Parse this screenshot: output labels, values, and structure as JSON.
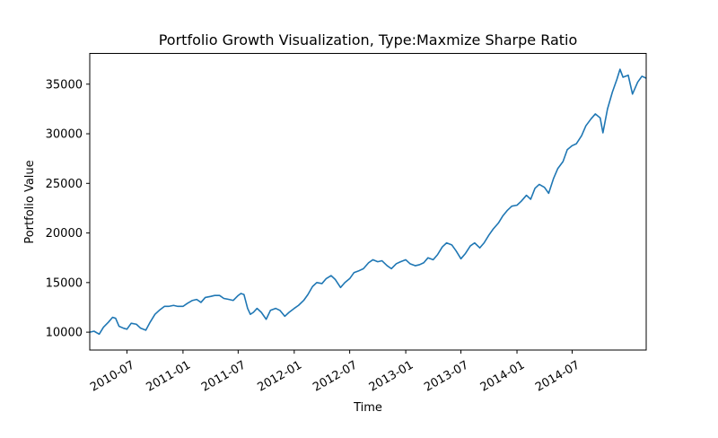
{
  "chart_data": {
    "type": "line",
    "title": "Portfolio Growth Visualization, Type:Maxmize Sharpe Ratio",
    "xlabel": "Time",
    "ylabel": "Portfolio Value",
    "grid": false,
    "legend": "none",
    "xlim": [
      "2010-03-01",
      "2015-03-01"
    ],
    "ylim": [
      8200,
      38100
    ],
    "x_ticks": [
      "2010-07",
      "2011-01",
      "2011-07",
      "2012-01",
      "2012-07",
      "2013-01",
      "2013-07",
      "2014-01",
      "2014-07"
    ],
    "y_ticks": [
      10000,
      15000,
      20000,
      25000,
      30000,
      35000
    ],
    "series": [
      {
        "color": "#1f77b4",
        "points": [
          [
            "2010-03-01",
            10000
          ],
          [
            "2010-03-15",
            10100
          ],
          [
            "2010-04-01",
            9800
          ],
          [
            "2010-04-15",
            10500
          ],
          [
            "2010-05-01",
            11000
          ],
          [
            "2010-05-15",
            11500
          ],
          [
            "2010-05-25",
            11400
          ],
          [
            "2010-06-05",
            10600
          ],
          [
            "2010-06-20",
            10400
          ],
          [
            "2010-07-01",
            10300
          ],
          [
            "2010-07-15",
            10900
          ],
          [
            "2010-08-01",
            10800
          ],
          [
            "2010-08-15",
            10400
          ],
          [
            "2010-09-01",
            10200
          ],
          [
            "2010-09-15",
            11000
          ],
          [
            "2010-10-01",
            11800
          ],
          [
            "2010-10-15",
            12200
          ],
          [
            "2010-11-01",
            12600
          ],
          [
            "2010-11-15",
            12600
          ],
          [
            "2010-12-01",
            12700
          ],
          [
            "2010-12-15",
            12600
          ],
          [
            "2011-01-01",
            12600
          ],
          [
            "2011-01-15",
            12900
          ],
          [
            "2011-02-01",
            13200
          ],
          [
            "2011-02-15",
            13300
          ],
          [
            "2011-03-01",
            13000
          ],
          [
            "2011-03-15",
            13500
          ],
          [
            "2011-04-01",
            13600
          ],
          [
            "2011-04-15",
            13700
          ],
          [
            "2011-05-01",
            13700
          ],
          [
            "2011-05-15",
            13400
          ],
          [
            "2011-06-01",
            13300
          ],
          [
            "2011-06-15",
            13200
          ],
          [
            "2011-07-01",
            13700
          ],
          [
            "2011-07-10",
            13900
          ],
          [
            "2011-07-20",
            13800
          ],
          [
            "2011-08-01",
            12400
          ],
          [
            "2011-08-10",
            11800
          ],
          [
            "2011-08-20",
            12000
          ],
          [
            "2011-09-01",
            12400
          ],
          [
            "2011-09-15",
            12000
          ],
          [
            "2011-10-01",
            11300
          ],
          [
            "2011-10-15",
            12200
          ],
          [
            "2011-11-01",
            12400
          ],
          [
            "2011-11-15",
            12200
          ],
          [
            "2011-12-01",
            11600
          ],
          [
            "2011-12-15",
            12000
          ],
          [
            "2012-01-01",
            12400
          ],
          [
            "2012-01-15",
            12700
          ],
          [
            "2012-02-01",
            13200
          ],
          [
            "2012-02-15",
            13800
          ],
          [
            "2012-03-01",
            14600
          ],
          [
            "2012-03-15",
            15000
          ],
          [
            "2012-04-01",
            14900
          ],
          [
            "2012-04-15",
            15400
          ],
          [
            "2012-05-01",
            15700
          ],
          [
            "2012-05-15",
            15300
          ],
          [
            "2012-06-01",
            14500
          ],
          [
            "2012-06-15",
            15000
          ],
          [
            "2012-07-01",
            15400
          ],
          [
            "2012-07-15",
            16000
          ],
          [
            "2012-08-01",
            16200
          ],
          [
            "2012-08-15",
            16400
          ],
          [
            "2012-09-01",
            17000
          ],
          [
            "2012-09-15",
            17300
          ],
          [
            "2012-10-01",
            17100
          ],
          [
            "2012-10-15",
            17200
          ],
          [
            "2012-11-01",
            16700
          ],
          [
            "2012-11-15",
            16400
          ],
          [
            "2012-12-01",
            16900
          ],
          [
            "2012-12-15",
            17100
          ],
          [
            "2013-01-01",
            17300
          ],
          [
            "2013-01-15",
            16900
          ],
          [
            "2013-02-01",
            16700
          ],
          [
            "2013-02-15",
            16800
          ],
          [
            "2013-03-01",
            17000
          ],
          [
            "2013-03-15",
            17500
          ],
          [
            "2013-04-01",
            17300
          ],
          [
            "2013-04-15",
            17800
          ],
          [
            "2013-05-01",
            18600
          ],
          [
            "2013-05-15",
            19000
          ],
          [
            "2013-06-01",
            18800
          ],
          [
            "2013-06-15",
            18200
          ],
          [
            "2013-07-01",
            17400
          ],
          [
            "2013-07-15",
            17900
          ],
          [
            "2013-08-01",
            18700
          ],
          [
            "2013-08-15",
            19000
          ],
          [
            "2013-09-01",
            18500
          ],
          [
            "2013-09-15",
            19000
          ],
          [
            "2013-10-01",
            19800
          ],
          [
            "2013-10-15",
            20400
          ],
          [
            "2013-11-01",
            21000
          ],
          [
            "2013-11-15",
            21700
          ],
          [
            "2013-12-01",
            22300
          ],
          [
            "2013-12-15",
            22700
          ],
          [
            "2014-01-01",
            22800
          ],
          [
            "2014-01-15",
            23200
          ],
          [
            "2014-02-01",
            23800
          ],
          [
            "2014-02-15",
            23400
          ],
          [
            "2014-03-01",
            24500
          ],
          [
            "2014-03-15",
            24900
          ],
          [
            "2014-04-01",
            24600
          ],
          [
            "2014-04-15",
            24000
          ],
          [
            "2014-05-01",
            25500
          ],
          [
            "2014-05-15",
            26500
          ],
          [
            "2014-06-01",
            27200
          ],
          [
            "2014-06-15",
            28400
          ],
          [
            "2014-07-01",
            28800
          ],
          [
            "2014-07-15",
            29000
          ],
          [
            "2014-08-01",
            29800
          ],
          [
            "2014-08-15",
            30800
          ],
          [
            "2014-09-01",
            31500
          ],
          [
            "2014-09-15",
            32000
          ],
          [
            "2014-10-01",
            31600
          ],
          [
            "2014-10-10",
            30100
          ],
          [
            "2014-10-25",
            32500
          ],
          [
            "2014-11-10",
            34200
          ],
          [
            "2014-11-25",
            35500
          ],
          [
            "2014-12-05",
            36500
          ],
          [
            "2014-12-15",
            35700
          ],
          [
            "2015-01-01",
            35900
          ],
          [
            "2015-01-15",
            34000
          ],
          [
            "2015-02-01",
            35200
          ],
          [
            "2015-02-15",
            35800
          ],
          [
            "2015-03-01",
            35600
          ]
        ]
      }
    ]
  }
}
